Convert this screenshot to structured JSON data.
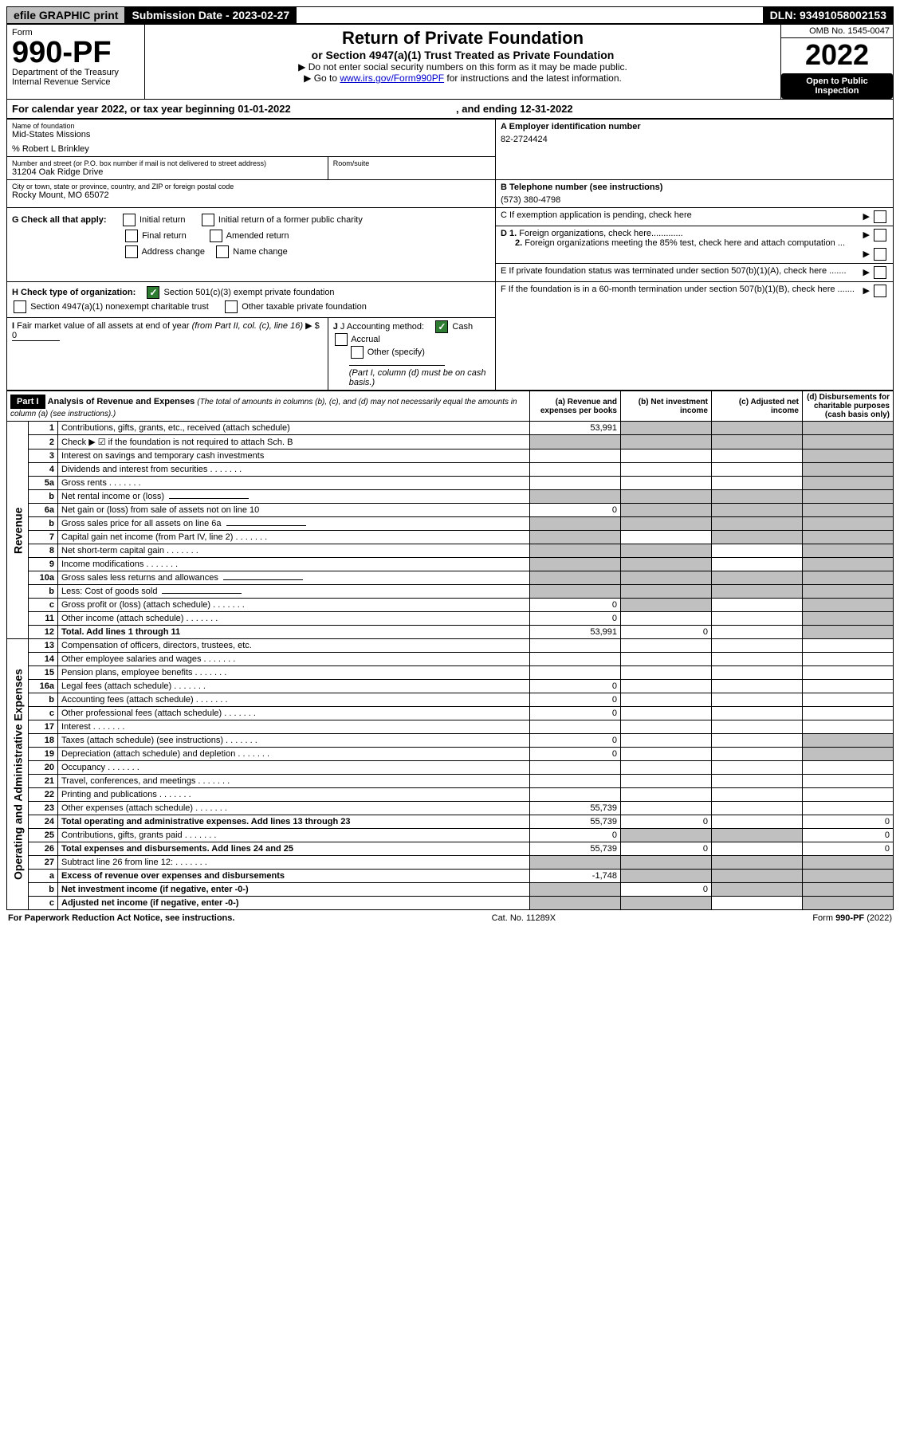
{
  "topbar": {
    "efile": "efile GRAPHIC print",
    "subdate_label": "Submission Date - ",
    "subdate_value": "2023-02-27",
    "dln_label": "DLN: ",
    "dln_value": "93491058002153"
  },
  "header": {
    "form_label": "Form",
    "form_number": "990-PF",
    "dept": "Department of the Treasury",
    "irs": "Internal Revenue Service",
    "title": "Return of Private Foundation",
    "subtitle": "or Section 4947(a)(1) Trust Treated as Private Foundation",
    "instr1": "▶ Do not enter social security numbers on this form as it may be made public.",
    "instr2_pre": "▶ Go to ",
    "instr2_link": "www.irs.gov/Form990PF",
    "instr2_post": " for instructions and the latest information.",
    "omb": "OMB No. 1545-0047",
    "year": "2022",
    "open": "Open to Public Inspection"
  },
  "calyear": {
    "text_pre": "For calendar year 2022, or tax year beginning ",
    "begin": "01-01-2022",
    "text_mid": " , and ending ",
    "end": "12-31-2022"
  },
  "entity": {
    "name_label": "Name of foundation",
    "name": "Mid-States Missions",
    "care_of": "% Robert L Brinkley",
    "addr_label": "Number and street (or P.O. box number if mail is not delivered to street address)",
    "addr": "31204 Oak Ridge Drive",
    "room_label": "Room/suite",
    "city_label": "City or town, state or province, country, and ZIP or foreign postal code",
    "city": "Rocky Mount, MO  65072",
    "ein_label": "A Employer identification number",
    "ein": "82-2724424",
    "phone_label": "B Telephone number (see instructions)",
    "phone": "(573) 380-4798",
    "c_label": "C If exemption application is pending, check here",
    "d1_label": "D 1. Foreign organizations, check here.............",
    "d2_label": "2. Foreign organizations meeting the 85% test, check here and attach computation ...",
    "e_label": "E If private foundation status was terminated under section 507(b)(1)(A), check here .......",
    "f_label": "F If the foundation is in a 60-month termination under section 507(b)(1)(B), check here ......."
  },
  "checks": {
    "g_label": "G Check all that apply:",
    "initial_return": "Initial return",
    "initial_former": "Initial return of a former public charity",
    "final_return": "Final return",
    "amended": "Amended return",
    "address_change": "Address change",
    "name_change": "Name change",
    "h_label": "H Check type of organization:",
    "h_501c3": "Section 501(c)(3) exempt private foundation",
    "h_4947": "Section 4947(a)(1) nonexempt charitable trust",
    "h_other": "Other taxable private foundation",
    "i_label": "I Fair market value of all assets at end of year (from Part II, col. (c), line 16)",
    "i_prefix": "▶ $",
    "i_value": "0",
    "j_label": "J Accounting method:",
    "j_cash": "Cash",
    "j_accrual": "Accrual",
    "j_other": "Other (specify)",
    "j_note": "(Part I, column (d) must be on cash basis.)"
  },
  "part1": {
    "label": "Part I",
    "title": "Analysis of Revenue and Expenses",
    "title_note": "(The total of amounts in columns (b), (c), and (d) may not necessarily equal the amounts in column (a) (see instructions).)",
    "col_a": "(a) Revenue and expenses per books",
    "col_b": "(b) Net investment income",
    "col_c": "(c) Adjusted net income",
    "col_d": "(d) Disbursements for charitable purposes (cash basis only)",
    "revenue_label": "Revenue",
    "expenses_label": "Operating and Administrative Expenses",
    "rows": [
      {
        "n": "1",
        "desc": "Contributions, gifts, grants, etc., received (attach schedule)",
        "a": "53,991",
        "b": null,
        "c": null,
        "d": null,
        "shade_b": true,
        "shade_c": true,
        "shade_d": true
      },
      {
        "n": "2",
        "desc": "Check ▶ ☑ if the foundation is not required to attach Sch. B",
        "a": null,
        "b": null,
        "c": null,
        "d": null,
        "shade_a": true,
        "shade_b": true,
        "shade_c": true,
        "shade_d": true
      },
      {
        "n": "3",
        "desc": "Interest on savings and temporary cash investments",
        "a": "",
        "b": "",
        "c": "",
        "d": null,
        "shade_d": true
      },
      {
        "n": "4",
        "desc": "Dividends and interest from securities",
        "a": "",
        "b": "",
        "c": "",
        "d": null,
        "shade_d": true
      },
      {
        "n": "5a",
        "desc": "Gross rents",
        "a": "",
        "b": "",
        "c": "",
        "d": null,
        "shade_d": true
      },
      {
        "n": "b",
        "desc": "Net rental income or (loss)",
        "a": null,
        "b": null,
        "c": null,
        "d": null,
        "shade_a": true,
        "shade_b": true,
        "shade_c": true,
        "shade_d": true,
        "inline": true
      },
      {
        "n": "6a",
        "desc": "Net gain or (loss) from sale of assets not on line 10",
        "a": "0",
        "b": null,
        "c": null,
        "d": null,
        "shade_b": true,
        "shade_c": true,
        "shade_d": true
      },
      {
        "n": "b",
        "desc": "Gross sales price for all assets on line 6a",
        "a": null,
        "b": null,
        "c": null,
        "d": null,
        "shade_a": true,
        "shade_b": true,
        "shade_c": true,
        "shade_d": true,
        "inline": true
      },
      {
        "n": "7",
        "desc": "Capital gain net income (from Part IV, line 2)",
        "a": null,
        "b": "",
        "c": null,
        "d": null,
        "shade_a": true,
        "shade_c": true,
        "shade_d": true
      },
      {
        "n": "8",
        "desc": "Net short-term capital gain",
        "a": null,
        "b": null,
        "c": "",
        "d": null,
        "shade_a": true,
        "shade_b": true,
        "shade_d": true
      },
      {
        "n": "9",
        "desc": "Income modifications",
        "a": null,
        "b": null,
        "c": "",
        "d": null,
        "shade_a": true,
        "shade_b": true,
        "shade_d": true
      },
      {
        "n": "10a",
        "desc": "Gross sales less returns and allowances",
        "a": null,
        "b": null,
        "c": null,
        "d": null,
        "shade_a": true,
        "shade_b": true,
        "shade_c": true,
        "shade_d": true,
        "inline": true
      },
      {
        "n": "b",
        "desc": "Less: Cost of goods sold",
        "a": null,
        "b": null,
        "c": null,
        "d": null,
        "shade_a": true,
        "shade_b": true,
        "shade_c": true,
        "shade_d": true,
        "inline": true
      },
      {
        "n": "c",
        "desc": "Gross profit or (loss) (attach schedule)",
        "a": "0",
        "b": null,
        "c": "",
        "d": null,
        "shade_b": true,
        "shade_d": true
      },
      {
        "n": "11",
        "desc": "Other income (attach schedule)",
        "a": "0",
        "b": "",
        "c": "",
        "d": null,
        "shade_d": true
      },
      {
        "n": "12",
        "desc": "Total. Add lines 1 through 11",
        "bold": true,
        "a": "53,991",
        "b": "0",
        "c": "",
        "d": null,
        "shade_d": true
      },
      {
        "n": "13",
        "desc": "Compensation of officers, directors, trustees, etc.",
        "a": "",
        "b": "",
        "c": "",
        "d": ""
      },
      {
        "n": "14",
        "desc": "Other employee salaries and wages",
        "a": "",
        "b": "",
        "c": "",
        "d": ""
      },
      {
        "n": "15",
        "desc": "Pension plans, employee benefits",
        "a": "",
        "b": "",
        "c": "",
        "d": ""
      },
      {
        "n": "16a",
        "desc": "Legal fees (attach schedule)",
        "a": "0",
        "b": "",
        "c": "",
        "d": ""
      },
      {
        "n": "b",
        "desc": "Accounting fees (attach schedule)",
        "a": "0",
        "b": "",
        "c": "",
        "d": ""
      },
      {
        "n": "c",
        "desc": "Other professional fees (attach schedule)",
        "a": "0",
        "b": "",
        "c": "",
        "d": ""
      },
      {
        "n": "17",
        "desc": "Interest",
        "a": "",
        "b": "",
        "c": "",
        "d": ""
      },
      {
        "n": "18",
        "desc": "Taxes (attach schedule) (see instructions)",
        "a": "0",
        "b": "",
        "c": "",
        "d": null,
        "shade_d": true
      },
      {
        "n": "19",
        "desc": "Depreciation (attach schedule) and depletion",
        "a": "0",
        "b": "",
        "c": "",
        "d": null,
        "shade_d": true
      },
      {
        "n": "20",
        "desc": "Occupancy",
        "a": "",
        "b": "",
        "c": "",
        "d": ""
      },
      {
        "n": "21",
        "desc": "Travel, conferences, and meetings",
        "a": "",
        "b": "",
        "c": "",
        "d": ""
      },
      {
        "n": "22",
        "desc": "Printing and publications",
        "a": "",
        "b": "",
        "c": "",
        "d": ""
      },
      {
        "n": "23",
        "desc": "Other expenses (attach schedule)",
        "a": "55,739",
        "b": "",
        "c": "",
        "d": ""
      },
      {
        "n": "24",
        "desc": "Total operating and administrative expenses. Add lines 13 through 23",
        "bold": true,
        "a": "55,739",
        "b": "0",
        "c": "",
        "d": "0"
      },
      {
        "n": "25",
        "desc": "Contributions, gifts, grants paid",
        "a": "0",
        "b": null,
        "c": null,
        "d": "0",
        "shade_b": true,
        "shade_c": true
      },
      {
        "n": "26",
        "desc": "Total expenses and disbursements. Add lines 24 and 25",
        "bold": true,
        "a": "55,739",
        "b": "0",
        "c": "",
        "d": "0"
      },
      {
        "n": "27",
        "desc": "Subtract line 26 from line 12:",
        "a": null,
        "b": null,
        "c": null,
        "d": null,
        "shade_a": true,
        "shade_b": true,
        "shade_c": true,
        "shade_d": true
      },
      {
        "n": "a",
        "desc": "Excess of revenue over expenses and disbursements",
        "bold": true,
        "a": "-1,748",
        "b": null,
        "c": null,
        "d": null,
        "shade_b": true,
        "shade_c": true,
        "shade_d": true
      },
      {
        "n": "b",
        "desc": "Net investment income (if negative, enter -0-)",
        "bold": true,
        "a": null,
        "b": "0",
        "c": null,
        "d": null,
        "shade_a": true,
        "shade_c": true,
        "shade_d": true
      },
      {
        "n": "c",
        "desc": "Adjusted net income (if negative, enter -0-)",
        "bold": true,
        "a": null,
        "b": null,
        "c": "",
        "d": null,
        "shade_a": true,
        "shade_b": true,
        "shade_d": true
      }
    ]
  },
  "footer": {
    "left": "For Paperwork Reduction Act Notice, see instructions.",
    "center": "Cat. No. 11289X",
    "right": "Form 990-PF (2022)"
  }
}
